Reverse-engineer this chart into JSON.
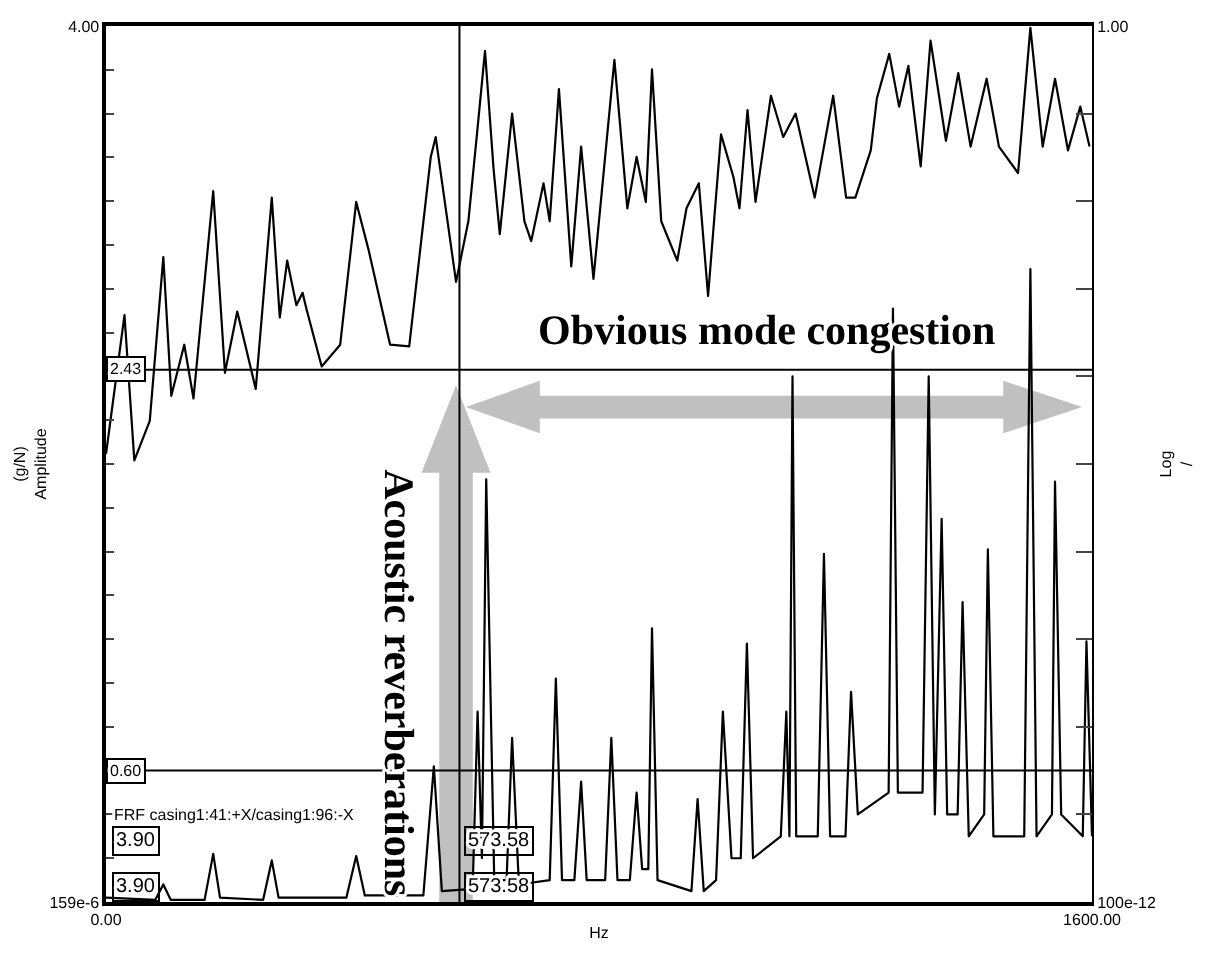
{
  "chart_data": {
    "type": "line",
    "xlabel": "Hz",
    "ylabel": "(g/N)\nAmplitude",
    "y2label": "Log\n/",
    "xlim": [
      0,
      1600
    ],
    "xticks": [
      {
        "value": 0,
        "label": "0.00"
      },
      {
        "value": 1600,
        "label": "1600.00"
      }
    ],
    "ylim": [
      0.000159,
      4.0
    ],
    "yticks": [
      {
        "value": 0.000159,
        "label": "159e-6"
      },
      {
        "value": 0.2,
        "label": null
      },
      {
        "value": 0.4,
        "label": null
      },
      {
        "value": 0.6,
        "label": null
      },
      {
        "value": 0.8,
        "label": null
      },
      {
        "value": 1.0,
        "label": null
      },
      {
        "value": 1.2,
        "label": null
      },
      {
        "value": 1.4,
        "label": null
      },
      {
        "value": 1.6,
        "label": null
      },
      {
        "value": 1.8,
        "label": null
      },
      {
        "value": 2.0,
        "label": null
      },
      {
        "value": 2.2,
        "label": null
      },
      {
        "value": 2.4,
        "label": null
      },
      {
        "value": 2.6,
        "label": null
      },
      {
        "value": 2.8,
        "label": null
      },
      {
        "value": 3.0,
        "label": null
      },
      {
        "value": 3.2,
        "label": null
      },
      {
        "value": 3.4,
        "label": null
      },
      {
        "value": 3.6,
        "label": null
      },
      {
        "value": 3.8,
        "label": null
      },
      {
        "value": 4.0,
        "label": "4.00"
      }
    ],
    "y2lim": [
      1e-10,
      1.0
    ],
    "y2ticks": [
      {
        "value": 1e-10,
        "label": "100e-12"
      },
      {
        "value": 1e-09,
        "label": null
      },
      {
        "value": 1e-08,
        "label": null
      },
      {
        "value": 1e-07,
        "label": null
      },
      {
        "value": 1e-06,
        "label": null
      },
      {
        "value": 1e-05,
        "label": null
      },
      {
        "value": 0.0001,
        "label": null
      },
      {
        "value": 0.001,
        "label": null
      },
      {
        "value": 0.01,
        "label": null
      },
      {
        "value": 0.1,
        "label": null
      },
      {
        "value": 1.0,
        "label": "1.00"
      }
    ],
    "log": "y2",
    "grid": false,
    "marker": "none",
    "line_style": "solid",
    "series": [
      {
        "color": "#000000",
        "axis": "y2",
        "x": [
          0,
          30,
          46,
          71,
          93,
          106,
          127,
          142,
          174,
          193,
          213,
          243,
          269,
          282,
          294,
          309,
          319,
          325,
          350,
          380,
          406,
          426,
          461,
          492,
          527,
          535,
          568,
          588,
          603,
          615,
          629,
          639,
          659,
          679,
          690,
          710,
          720,
          735,
          755,
          771,
          791,
          825,
          846,
          861,
          876,
          886,
          901,
          927,
          942,
          962,
          977,
          998,
          1018,
          1028,
          1041,
          1054,
          1079,
          1099,
          1119,
          1150,
          1180,
          1201,
          1216,
          1241,
          1251,
          1271,
          1287,
          1302,
          1322,
          1338,
          1363,
          1383,
          1403,
          1429,
          1449,
          1480,
          1500,
          1520,
          1540,
          1561,
          1581,
          1596
        ],
        "values": [
          1.3e-05,
          0.0005,
          1.1e-05,
          3.1e-05,
          0.0023,
          6e-05,
          0.00023,
          5.6e-05,
          0.013,
          0.00011,
          0.00055,
          7.2e-05,
          0.011,
          0.00047,
          0.0021,
          0.00065,
          0.0009,
          0.0006,
          0.00013,
          0.00023,
          0.0098,
          0.0028,
          0.00023,
          0.00022,
          0.032,
          0.054,
          0.0012,
          0.0059,
          0.069,
          0.52,
          0.023,
          0.0042,
          0.1,
          0.0059,
          0.0035,
          0.016,
          0.0059,
          0.19,
          0.0018,
          0.042,
          0.0013,
          0.41,
          0.0083,
          0.032,
          0.0098,
          0.32,
          0.0059,
          0.0021,
          0.0083,
          0.016,
          0.00083,
          0.058,
          0.019,
          0.0083,
          0.11,
          0.0098,
          0.16,
          0.054,
          0.1,
          0.011,
          0.16,
          0.011,
          0.011,
          0.038,
          0.15,
          0.48,
          0.12,
          0.35,
          0.025,
          0.68,
          0.049,
          0.29,
          0.042,
          0.25,
          0.042,
          0.021,
          0.95,
          0.042,
          0.25,
          0.038,
          0.12,
          0.042
        ]
      },
      {
        "color": "#000000",
        "x": [
          0,
          80,
          93,
          105,
          160,
          174,
          185,
          255,
          269,
          280,
          390,
          406,
          420,
          515,
          532,
          545,
          595,
          603,
          610,
          617,
          630,
          650,
          659,
          670,
          720,
          730,
          740,
          760,
          771,
          780,
          810,
          820,
          830,
          850,
          861,
          870,
          880,
          886,
          895,
          950,
          960,
          970,
          990,
          1001,
          1015,
          1030,
          1040,
          1050,
          1095,
          1104,
          1109,
          1114,
          1120,
          1155,
          1165,
          1175,
          1200,
          1209,
          1220,
          1270,
          1277,
          1285,
          1325,
          1335,
          1345,
          1356,
          1365,
          1382,
          1390,
          1400,
          1425,
          1431,
          1440,
          1490,
          1500,
          1510,
          1535,
          1540,
          1550,
          1585,
          1591,
          1600
        ],
        "values": [
          0.02,
          0.01,
          0.08,
          0.01,
          0.01,
          0.22,
          0.02,
          0.01,
          0.19,
          0.02,
          0.02,
          0.21,
          0.03,
          0.03,
          0.62,
          0.05,
          0.06,
          0.87,
          0.2,
          1.93,
          0.1,
          0.1,
          0.75,
          0.08,
          0.1,
          1.02,
          0.1,
          0.1,
          0.55,
          0.1,
          0.1,
          0.75,
          0.1,
          0.1,
          0.5,
          0.15,
          0.15,
          1.25,
          0.1,
          0.05,
          0.47,
          0.05,
          0.1,
          0.87,
          0.2,
          0.2,
          1.18,
          0.2,
          0.3,
          0.87,
          0.3,
          2.4,
          0.3,
          0.3,
          1.59,
          0.3,
          0.3,
          0.96,
          0.4,
          0.5,
          2.71,
          0.5,
          0.5,
          2.4,
          0.4,
          1.75,
          0.4,
          0.4,
          1.37,
          0.3,
          0.4,
          1.61,
          0.3,
          0.3,
          2.89,
          0.3,
          0.4,
          1.92,
          0.4,
          0.3,
          1.19,
          0.3
        ]
      }
    ],
    "ref_lines": [
      {
        "axis": "y",
        "value": 2.43,
        "label": "2.43",
        "color": "#000000"
      },
      {
        "axis": "y",
        "value": 0.6,
        "label": "0.60",
        "color": "#000000"
      },
      {
        "axis": "x",
        "value": 573.58,
        "label": "573.58",
        "color": "#000000"
      }
    ],
    "annotations": [
      "Obvious mode congestion",
      "Acoustic reverberations",
      "FRF casing1:41:+X/casing1:96:-X",
      "3.90",
      "573.58",
      "3.90"
    ]
  }
}
